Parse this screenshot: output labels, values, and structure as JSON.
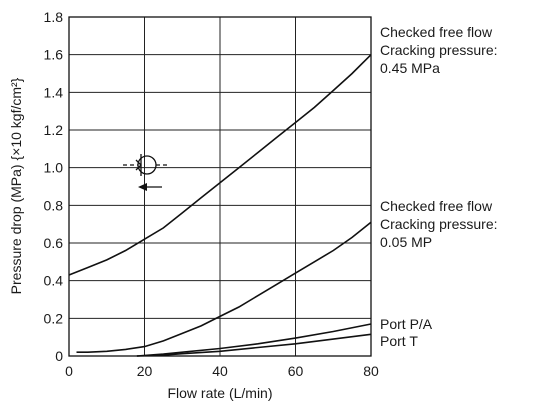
{
  "chart_data": {
    "type": "line",
    "xlabel": "Flow rate (L/min)",
    "ylabel": "Pressure drop (MPa) {×10 kgf/cm²}",
    "xlim": [
      0,
      80
    ],
    "ylim": [
      0,
      1.8
    ],
    "x_ticks": [
      "0",
      "20",
      "40",
      "60",
      "80"
    ],
    "y_ticks": [
      "0",
      "0.2",
      "0.4",
      "0.6",
      "0.8",
      "1.0",
      "1.2",
      "1.4",
      "1.6",
      "1.8"
    ],
    "grid": true,
    "series": [
      {
        "name": "Checked free flow Cracking pressure: 0.45 MPa",
        "label_lines": [
          "Checked free flow",
          "Cracking pressure:",
          "0.45 MPa"
        ],
        "x": [
          0,
          5,
          10,
          15,
          20,
          25,
          30,
          35,
          40,
          45,
          50,
          55,
          60,
          65,
          70,
          75,
          80
        ],
        "y": [
          0.43,
          0.47,
          0.51,
          0.56,
          0.62,
          0.68,
          0.76,
          0.84,
          0.92,
          1.0,
          1.08,
          1.16,
          1.24,
          1.32,
          1.41,
          1.5,
          1.6
        ]
      },
      {
        "name": "Checked free flow Cracking pressure: 0.05 MP",
        "label_lines": [
          "Checked free flow",
          "Cracking pressure:",
          "0.05 MP"
        ],
        "x": [
          2,
          5,
          10,
          15,
          20,
          25,
          30,
          35,
          40,
          45,
          50,
          55,
          60,
          65,
          70,
          75,
          80
        ],
        "y": [
          0.02,
          0.02,
          0.025,
          0.035,
          0.05,
          0.08,
          0.12,
          0.16,
          0.21,
          0.26,
          0.32,
          0.38,
          0.44,
          0.5,
          0.56,
          0.63,
          0.71
        ]
      },
      {
        "name": "Port P/A",
        "label_lines": [
          "Port P/A"
        ],
        "x": [
          18,
          25,
          30,
          40,
          50,
          60,
          70,
          80
        ],
        "y": [
          0.0,
          0.01,
          0.02,
          0.04,
          0.065,
          0.095,
          0.13,
          0.17
        ]
      },
      {
        "name": "Port T",
        "label_lines": [
          "Port T"
        ],
        "x": [
          18,
          25,
          30,
          40,
          50,
          60,
          70,
          80
        ],
        "y": [
          0.0,
          0.005,
          0.012,
          0.025,
          0.045,
          0.065,
          0.09,
          0.115
        ]
      }
    ],
    "annotations": [
      {
        "type": "check-valve-symbol"
      }
    ]
  }
}
